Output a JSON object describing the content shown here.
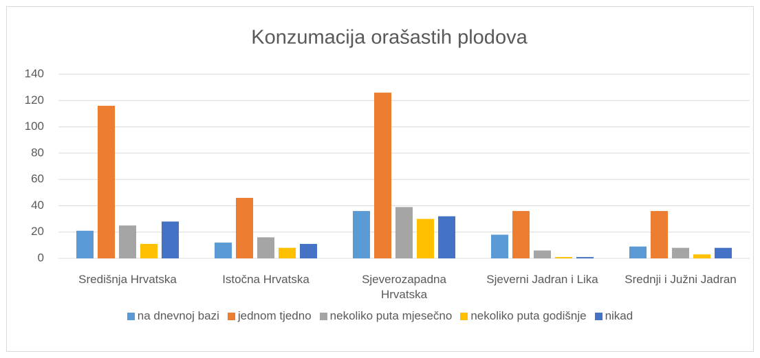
{
  "chart_data": {
    "type": "bar",
    "title": "Konzumacija orašastih plodova",
    "categories": [
      "Središnja Hrvatska",
      "Istočna Hrvatska",
      "Sjeverozapadna Hrvatska",
      "Sjeverni Jadran i Lika",
      "Srednji i Južni Jadran"
    ],
    "series": [
      {
        "name": "na dnevnoj bazi",
        "color": "#5b9bd5",
        "values": [
          21,
          12,
          36,
          18,
          9
        ]
      },
      {
        "name": "jednom tjedno",
        "color": "#ed7d31",
        "values": [
          116,
          46,
          126,
          36,
          36
        ]
      },
      {
        "name": "nekoliko puta mjesečno",
        "color": "#a5a5a5",
        "values": [
          25,
          16,
          39,
          6,
          8
        ]
      },
      {
        "name": "nekoliko puta godišnje",
        "color": "#ffc000",
        "values": [
          11,
          8,
          30,
          1,
          3
        ]
      },
      {
        "name": "nikad",
        "color": "#4472c4",
        "values": [
          28,
          11,
          32,
          1,
          8
        ]
      }
    ],
    "ylim": [
      0,
      140
    ],
    "yticks": [
      0,
      20,
      40,
      60,
      80,
      100,
      120,
      140
    ],
    "grid": true,
    "legend": "bottom"
  }
}
